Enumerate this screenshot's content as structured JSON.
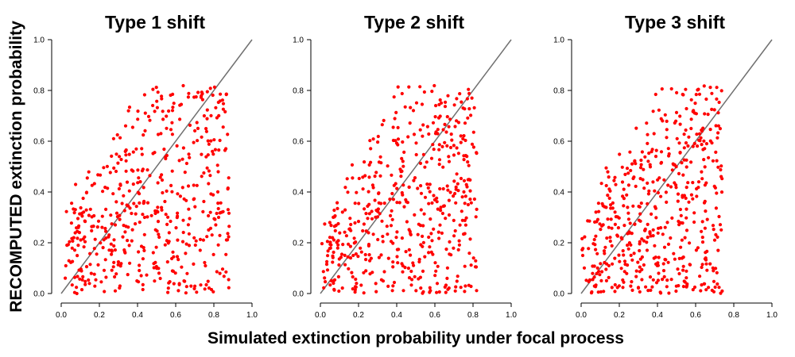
{
  "figure": {
    "xlabel": "Simulated extinction probability under focal process",
    "ylabel": "RECOMPUTED extinction probability"
  },
  "chart_data": [
    {
      "type": "scatter",
      "title": "Type 1 shift",
      "xlim": [
        0,
        1
      ],
      "ylim": [
        0,
        1
      ],
      "xticks": [
        "0.0",
        "0.2",
        "0.4",
        "0.6",
        "0.8",
        "1.0"
      ],
      "yticks": [
        "0.0",
        "0.2",
        "0.4",
        "0.6",
        "0.8",
        "1.0"
      ],
      "reference_line": "y = x",
      "point_color": "#ff0000",
      "x_range": [
        0.02,
        0.88
      ],
      "y_range": [
        0.0,
        0.82
      ],
      "n_points": 500,
      "seed": 11
    },
    {
      "type": "scatter",
      "title": "Type 2 shift",
      "xlim": [
        0,
        1
      ],
      "ylim": [
        0,
        1
      ],
      "xticks": [
        "0.0",
        "0.2",
        "0.4",
        "0.6",
        "0.8",
        "1.0"
      ],
      "yticks": [
        "0.0",
        "0.2",
        "0.4",
        "0.6",
        "0.8",
        "1.0"
      ],
      "reference_line": "y = x",
      "point_color": "#ff0000",
      "x_range": [
        0.0,
        0.82
      ],
      "y_range": [
        0.0,
        0.82
      ],
      "n_points": 500,
      "seed": 23
    },
    {
      "type": "scatter",
      "title": "Type 3 shift",
      "xlim": [
        0,
        1
      ],
      "ylim": [
        0,
        1
      ],
      "xticks": [
        "0.0",
        "0.2",
        "0.4",
        "0.6",
        "0.8",
        "1.0"
      ],
      "yticks": [
        "0.0",
        "0.2",
        "0.4",
        "0.6",
        "0.8",
        "1.0"
      ],
      "reference_line": "y = x",
      "point_color": "#ff0000",
      "x_range": [
        0.0,
        0.74
      ],
      "y_range": [
        0.0,
        0.82
      ],
      "n_points": 500,
      "seed": 37
    }
  ]
}
